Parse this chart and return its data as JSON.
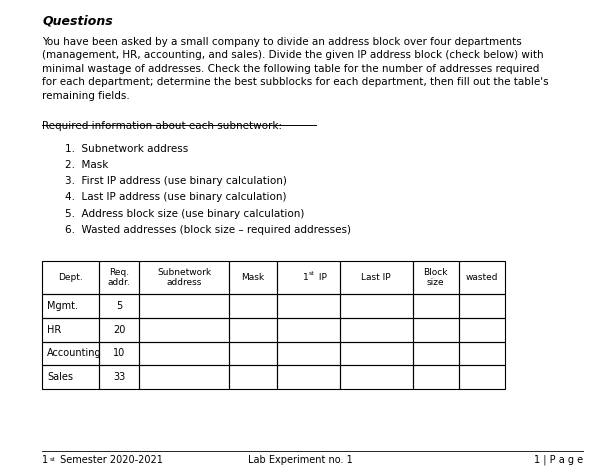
{
  "title": "Questions",
  "paragraph": "You have been asked by a small company to divide an address block over four departments\n(management, HR, accounting, and sales). Divide the given IP address block (check below) with\nminimal wastage of addresses. Check the following table for the number of addresses required\nfor each department; determine the best subblocks for each department, then fill out the table's\nremaining fields.",
  "underline_label": "Required information about each subnetwork:",
  "numbered_list": [
    "Subnetwork address",
    "Mask",
    "First IP address (use binary calculation)",
    "Last IP address (use binary calculation)",
    "Address block size (use binary calculation)",
    "Wasted addresses (block size – required addresses)"
  ],
  "table_headers": [
    "Dept.",
    "Req.\naddr.",
    "Subnetwork\naddress",
    "Mask",
    "1st IP",
    "Last IP",
    "Block\nsize",
    "wasted"
  ],
  "table_rows": [
    [
      "Mgmt.",
      "5",
      "",
      "",
      "",
      "",
      "",
      ""
    ],
    [
      "HR",
      "20",
      "",
      "",
      "",
      "",
      "",
      ""
    ],
    [
      "Accounting",
      "10",
      "",
      "",
      "",
      "",
      "",
      ""
    ],
    [
      "Sales",
      "33",
      "",
      "",
      "",
      "",
      "",
      ""
    ]
  ],
  "footer_left": "1st Semester 2020-2021",
  "footer_center": "Lab Experiment no. 1",
  "footer_right": "1 | P a g e",
  "bg_color": "#ffffff",
  "text_color": "#000000",
  "font_size_title": 9,
  "font_size_body": 7.5,
  "font_size_footer": 7
}
